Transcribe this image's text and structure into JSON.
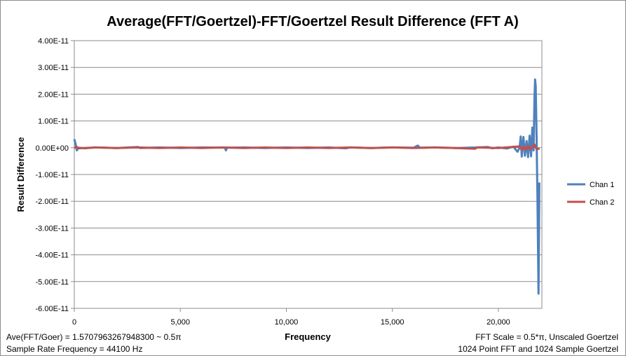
{
  "chart_data": {
    "type": "line",
    "title": "Average(FFT/Goertzel)-FFT/Goertzel Result Difference (FFT A)",
    "xlabel": "Frequency",
    "ylabel": "Result Difference",
    "xlim": [
      0,
      22050
    ],
    "ylim": [
      -6e-11,
      4e-11
    ],
    "x_ticks": [
      0,
      5000,
      10000,
      15000,
      20000
    ],
    "x_tick_labels": [
      "0",
      "5,000",
      "10,000",
      "15,000",
      "20,000"
    ],
    "y_ticks": [
      4e-11,
      3e-11,
      2e-11,
      1e-11,
      0,
      -1e-11,
      -2e-11,
      -3e-11,
      -4e-11,
      -5e-11,
      -6e-11
    ],
    "y_tick_labels": [
      "4.00E-11",
      "3.00E-11",
      "2.00E-11",
      "1.00E-11",
      "0.00E+00",
      "-1.00E-11",
      "-2.00E-11",
      "-3.00E-11",
      "-4.00E-11",
      "-5.00E-11",
      "-6.00E-11"
    ],
    "grid": "horizontal",
    "legend_position": "right",
    "series": [
      {
        "name": "Chan 1",
        "color": "#4f81bd",
        "points": [
          [
            0,
            3.2e-12
          ],
          [
            60,
            1.5e-12
          ],
          [
            120,
            -1e-12
          ],
          [
            200,
            0
          ],
          [
            500,
            -2e-13
          ],
          [
            1000,
            1e-13
          ],
          [
            2000,
            -1e-13
          ],
          [
            3000,
            3e-13
          ],
          [
            3100,
            -1e-13
          ],
          [
            4000,
            1e-13
          ],
          [
            5000,
            -1e-13
          ],
          [
            6000,
            1e-13
          ],
          [
            7100,
            0
          ],
          [
            7150,
            -1e-12
          ],
          [
            7200,
            0
          ],
          [
            8000,
            1e-13
          ],
          [
            9000,
            -1e-13
          ],
          [
            10000,
            1e-13
          ],
          [
            11000,
            -1e-13
          ],
          [
            12000,
            1e-13
          ],
          [
            12800,
            -2e-13
          ],
          [
            13000,
            1e-13
          ],
          [
            14000,
            -1e-13
          ],
          [
            15000,
            1e-13
          ],
          [
            16000,
            0
          ],
          [
            16200,
            8e-13
          ],
          [
            16300,
            0
          ],
          [
            17000,
            1e-13
          ],
          [
            18000,
            -1e-13
          ],
          [
            19000,
            1e-13
          ],
          [
            19500,
            3e-13
          ],
          [
            19700,
            -2e-13
          ],
          [
            20000,
            1e-13
          ],
          [
            20400,
            -3e-13
          ],
          [
            20700,
            4e-13
          ],
          [
            20900,
            -1.5e-12
          ],
          [
            21000,
            0
          ],
          [
            21050,
            4.2e-12
          ],
          [
            21100,
            -3.3e-12
          ],
          [
            21180,
            4e-12
          ],
          [
            21250,
            -3e-12
          ],
          [
            21330,
            2.5e-12
          ],
          [
            21400,
            -3.5e-12
          ],
          [
            21470,
            4.5e-12
          ],
          [
            21540,
            -3.2e-12
          ],
          [
            21600,
            7.5e-12
          ],
          [
            21660,
            -1e-12
          ],
          [
            21700,
            1.8e-11
          ],
          [
            21730,
            2.55e-11
          ],
          [
            21760,
            2.3e-11
          ],
          [
            21800,
            5e-12
          ],
          [
            21840,
            -1.7e-11
          ],
          [
            21870,
            -4e-11
          ],
          [
            21890,
            -5.45e-11
          ],
          [
            21910,
            -3.5e-11
          ],
          [
            21930,
            -1.33e-11
          ],
          [
            21940,
            -1.35e-11
          ]
        ]
      },
      {
        "name": "Chan 2",
        "color": "#c0504d",
        "points": [
          [
            0,
            -1e-13
          ],
          [
            100,
            4e-13
          ],
          [
            200,
            -2e-13
          ],
          [
            1000,
            1e-13
          ],
          [
            2000,
            -1e-13
          ],
          [
            3000,
            1e-13
          ],
          [
            4000,
            -1e-13
          ],
          [
            5000,
            1e-13
          ],
          [
            6000,
            -1e-13
          ],
          [
            7000,
            1e-13
          ],
          [
            8000,
            -1e-13
          ],
          [
            9000,
            1e-13
          ],
          [
            10000,
            -1e-13
          ],
          [
            11000,
            1e-13
          ],
          [
            12000,
            -1e-13
          ],
          [
            13000,
            1e-13
          ],
          [
            14000,
            -1e-13
          ],
          [
            15000,
            1e-13
          ],
          [
            16000,
            -1e-13
          ],
          [
            17000,
            1e-13
          ],
          [
            18000,
            -1e-13
          ],
          [
            18900,
            -4e-13
          ],
          [
            19000,
            1e-13
          ],
          [
            20000,
            -1e-13
          ],
          [
            21000,
            5e-13
          ],
          [
            21100,
            -8e-13
          ],
          [
            21200,
            5e-13
          ],
          [
            21300,
            -7e-13
          ],
          [
            21400,
            6e-13
          ],
          [
            21500,
            -6e-13
          ],
          [
            21600,
            5e-13
          ],
          [
            21700,
            1.2e-12
          ],
          [
            21800,
            -5e-13
          ],
          [
            21900,
            -4e-13
          ],
          [
            21940,
            -3e-13
          ]
        ]
      }
    ]
  },
  "annotations": {
    "left_line1": "Ave(FFT/Goer) = 1.5707963267948300  ~ 0.5π",
    "left_line2": "Sample Rate Frequency = 44100  Hz",
    "right_line1": "FFT Scale = 0.5*π, Unscaled Goertzel",
    "right_line2": "1024 Point FFT and 1024  Sample Goertzel"
  }
}
